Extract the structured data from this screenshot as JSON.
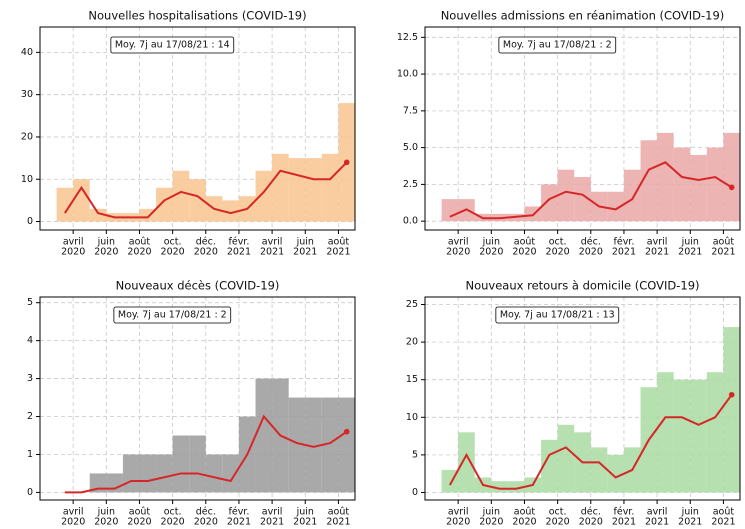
{
  "chart_data": [
    {
      "type": "bar",
      "title": "Nouvelles hospitalisations (COVID-19)",
      "annotation": "Moy. 7j au 17/08/21 : 14",
      "x": [
        "2020-03",
        "2020-04",
        "2020-05",
        "2020-06",
        "2020-07",
        "2020-08",
        "2020-09",
        "2020-10",
        "2020-11",
        "2020-12",
        "2021-01",
        "2021-02",
        "2021-03",
        "2021-04",
        "2021-05",
        "2021-06",
        "2021-07",
        "2021-08"
      ],
      "series": [
        {
          "type": "bar",
          "color": "#f9c490",
          "values": [
            8,
            10,
            3,
            2,
            2,
            3,
            8,
            12,
            10,
            6,
            5,
            6,
            12,
            16,
            15,
            15,
            16,
            28
          ]
        },
        {
          "type": "line",
          "color": "#d62728",
          "values": [
            2,
            8,
            2,
            1,
            1,
            1,
            5,
            7,
            6,
            3,
            2,
            3,
            7,
            12,
            11,
            10,
            10,
            14
          ]
        }
      ],
      "xlim": [
        "2020-02",
        "2021-09"
      ],
      "xticks": [
        {
          "value": "2020-04",
          "label": [
            "avril",
            "2020"
          ]
        },
        {
          "value": "2020-06",
          "label": [
            "juin",
            "2020"
          ]
        },
        {
          "value": "2020-08",
          "label": [
            "août",
            "2020"
          ]
        },
        {
          "value": "2020-10",
          "label": [
            "oct.",
            "2020"
          ]
        },
        {
          "value": "2020-12",
          "label": [
            "déc.",
            "2020"
          ]
        },
        {
          "value": "2021-02",
          "label": [
            "févr.",
            "2021"
          ]
        },
        {
          "value": "2021-04",
          "label": [
            "avril",
            "2021"
          ]
        },
        {
          "value": "2021-06",
          "label": [
            "juin",
            "2021"
          ]
        },
        {
          "value": "2021-08",
          "label": [
            "août",
            "2021"
          ]
        }
      ],
      "ylim": [
        -2,
        46
      ],
      "yticks": [
        0,
        10,
        20,
        30,
        40
      ],
      "grid": true
    },
    {
      "type": "bar",
      "title": "Nouvelles admissions en réanimation (COVID-19)",
      "annotation": "Moy. 7j au 17/08/21 : 2",
      "x": [
        "2020-03",
        "2020-04",
        "2020-05",
        "2020-06",
        "2020-07",
        "2020-08",
        "2020-09",
        "2020-10",
        "2020-11",
        "2020-12",
        "2021-01",
        "2021-02",
        "2021-03",
        "2021-04",
        "2021-05",
        "2021-06",
        "2021-07",
        "2021-08"
      ],
      "series": [
        {
          "type": "bar",
          "color": "#eaa7a7",
          "values": [
            1.5,
            1.5,
            0.5,
            0.5,
            0.5,
            1,
            2.5,
            3.5,
            3,
            2,
            2,
            3.5,
            5.5,
            6,
            5,
            4.5,
            5,
            6
          ]
        },
        {
          "type": "line",
          "color": "#d62728",
          "values": [
            0.3,
            0.8,
            0.2,
            0.2,
            0.3,
            0.4,
            1.5,
            2,
            1.8,
            1,
            0.8,
            1.5,
            3.5,
            4,
            3,
            2.8,
            3,
            2.3
          ]
        }
      ],
      "xlim": [
        "2020-02",
        "2021-09"
      ],
      "xticks": [
        {
          "value": "2020-04",
          "label": [
            "avril",
            "2020"
          ]
        },
        {
          "value": "2020-06",
          "label": [
            "juin",
            "2020"
          ]
        },
        {
          "value": "2020-08",
          "label": [
            "août",
            "2020"
          ]
        },
        {
          "value": "2020-10",
          "label": [
            "oct.",
            "2020"
          ]
        },
        {
          "value": "2020-12",
          "label": [
            "déc.",
            "2020"
          ]
        },
        {
          "value": "2021-02",
          "label": [
            "févr.",
            "2021"
          ]
        },
        {
          "value": "2021-04",
          "label": [
            "avril",
            "2021"
          ]
        },
        {
          "value": "2021-06",
          "label": [
            "juin",
            "2021"
          ]
        },
        {
          "value": "2021-08",
          "label": [
            "août",
            "2021"
          ]
        }
      ],
      "ylim": [
        -0.6,
        13.2
      ],
      "yticks": [
        {
          "value": 0,
          "label": "0.0"
        },
        2.5,
        {
          "value": 5,
          "label": "5.0"
        },
        7.5,
        {
          "value": 10,
          "label": "10.0"
        },
        12.5
      ],
      "grid": true
    },
    {
      "type": "bar",
      "title": "Nouveaux décès (COVID-19)",
      "annotation": "Moy. 7j au 17/08/21 : 2",
      "x": [
        "2020-03",
        "2020-04",
        "2020-05",
        "2020-06",
        "2020-07",
        "2020-08",
        "2020-09",
        "2020-10",
        "2020-11",
        "2020-12",
        "2021-01",
        "2021-02",
        "2021-03",
        "2021-04",
        "2021-05",
        "2021-06",
        "2021-07",
        "2021-08"
      ],
      "series": [
        {
          "type": "bar",
          "color": "#9a9a9a",
          "values": [
            0,
            0,
            0.5,
            0.5,
            1,
            1,
            1,
            1.5,
            1.5,
            1,
            1,
            2,
            3,
            3,
            2.5,
            2.5,
            2.5,
            2.5
          ]
        },
        {
          "type": "line",
          "color": "#d62728",
          "values": [
            0,
            0,
            0.1,
            0.1,
            0.3,
            0.3,
            0.4,
            0.5,
            0.5,
            0.4,
            0.3,
            1,
            2,
            1.5,
            1.3,
            1.2,
            1.3,
            1.6
          ]
        }
      ],
      "xlim": [
        "2020-02",
        "2021-09"
      ],
      "xticks": [
        {
          "value": "2020-04",
          "label": [
            "avril",
            "2020"
          ]
        },
        {
          "value": "2020-06",
          "label": [
            "juin",
            "2020"
          ]
        },
        {
          "value": "2020-08",
          "label": [
            "août",
            "2020"
          ]
        },
        {
          "value": "2020-10",
          "label": [
            "oct.",
            "2020"
          ]
        },
        {
          "value": "2020-12",
          "label": [
            "déc.",
            "2020"
          ]
        },
        {
          "value": "2021-02",
          "label": [
            "févr.",
            "2021"
          ]
        },
        {
          "value": "2021-04",
          "label": [
            "avril",
            "2021"
          ]
        },
        {
          "value": "2021-06",
          "label": [
            "juin",
            "2021"
          ]
        },
        {
          "value": "2021-08",
          "label": [
            "août",
            "2021"
          ]
        }
      ],
      "ylim": [
        -0.2,
        5.15
      ],
      "yticks": [
        0,
        1,
        2,
        3,
        4,
        5
      ],
      "grid": true
    },
    {
      "type": "bar",
      "title": "Nouveaux retours à domicile (COVID-19)",
      "annotation": "Moy. 7j au 17/08/21 : 13",
      "x": [
        "2020-03",
        "2020-04",
        "2020-05",
        "2020-06",
        "2020-07",
        "2020-08",
        "2020-09",
        "2020-10",
        "2020-11",
        "2020-12",
        "2021-01",
        "2021-02",
        "2021-03",
        "2021-04",
        "2021-05",
        "2021-06",
        "2021-07",
        "2021-08"
      ],
      "series": [
        {
          "type": "bar",
          "color": "#a9dba2",
          "values": [
            3,
            8,
            2,
            1.5,
            1.5,
            2,
            7,
            9,
            8,
            6,
            5,
            6,
            14,
            16,
            15,
            15,
            16,
            22
          ]
        },
        {
          "type": "line",
          "color": "#d62728",
          "values": [
            1,
            5,
            1,
            0.5,
            0.5,
            1,
            5,
            6,
            4,
            4,
            2,
            3,
            7,
            10,
            10,
            9,
            10,
            13
          ]
        }
      ],
      "xlim": [
        "2020-02",
        "2021-09"
      ],
      "xticks": [
        {
          "value": "2020-04",
          "label": [
            "avril",
            "2020"
          ]
        },
        {
          "value": "2020-06",
          "label": [
            "juin",
            "2020"
          ]
        },
        {
          "value": "2020-08",
          "label": [
            "août",
            "2020"
          ]
        },
        {
          "value": "2020-10",
          "label": [
            "oct.",
            "2020"
          ]
        },
        {
          "value": "2020-12",
          "label": [
            "déc.",
            "2020"
          ]
        },
        {
          "value": "2021-02",
          "label": [
            "févr.",
            "2021"
          ]
        },
        {
          "value": "2021-04",
          "label": [
            "avril",
            "2021"
          ]
        },
        {
          "value": "2021-06",
          "label": [
            "juin",
            "2021"
          ]
        },
        {
          "value": "2021-08",
          "label": [
            "août",
            "2021"
          ]
        }
      ],
      "ylim": [
        -1,
        26
      ],
      "yticks": [
        0,
        5,
        10,
        15,
        20,
        25
      ],
      "grid": true
    }
  ]
}
